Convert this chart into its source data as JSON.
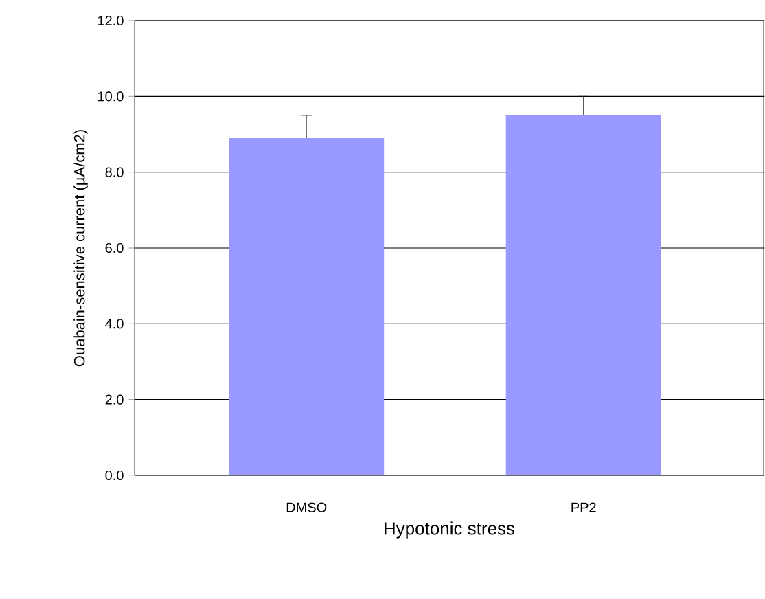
{
  "chart_data": {
    "type": "bar",
    "xlabel": "Hypotonic stress",
    "ylabel": "Ouabain-sensitive current (µA/cm2)",
    "categories": [
      "DMSO",
      "PP2"
    ],
    "values": [
      8.9,
      9.5
    ],
    "errors": [
      0.6,
      0.5
    ],
    "color": "#9999ff",
    "ylim": [
      0,
      12
    ],
    "yticks": [
      {
        "value": 0,
        "label": "0.0"
      },
      {
        "value": 2,
        "label": "2.0"
      },
      {
        "value": 4,
        "label": "4.0"
      },
      {
        "value": 6,
        "label": "6.0"
      },
      {
        "value": 8,
        "label": "8.0"
      },
      {
        "value": 10,
        "label": "10.0"
      },
      {
        "value": 12,
        "label": "12.0"
      }
    ],
    "grid": "y"
  }
}
